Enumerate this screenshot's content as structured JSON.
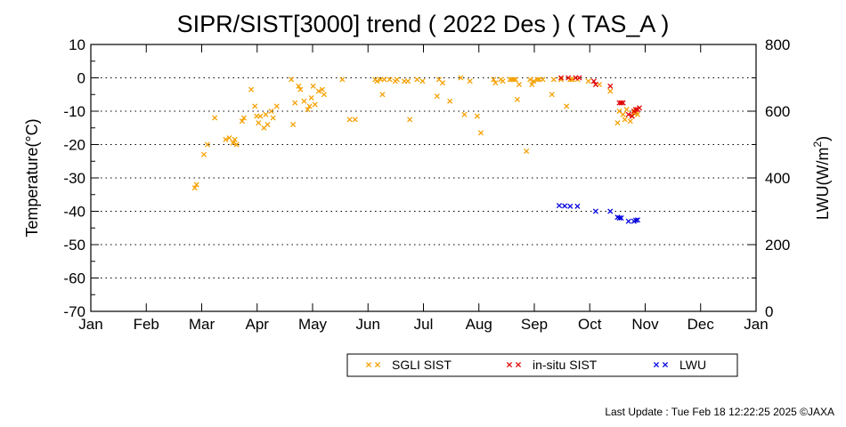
{
  "chart_data": {
    "type": "scatter",
    "title": "SIPR/SIST[3000] trend ( 2022 Des ) ( TAS_A )",
    "ylabel": "Temperature(°C)",
    "y2label_main": "LWU(W/m",
    "y2label_sup": "2",
    "y2label_end": ")",
    "xlabel": "",
    "ylim": [
      -70,
      10
    ],
    "y2lim": [
      0,
      800
    ],
    "yticks": [
      "10",
      "0",
      "-10",
      "-20",
      "-30",
      "-40",
      "-50",
      "-60",
      "-70"
    ],
    "y2ticks": [
      "800",
      "600",
      "400",
      "200",
      "0"
    ],
    "months": [
      "Jan",
      "Feb",
      "Mar",
      "Apr",
      "May",
      "Jun",
      "Jul",
      "Aug",
      "Sep",
      "Oct",
      "Nov",
      "Dec",
      "Jan"
    ],
    "grid": "dotted horizontal at major y ticks",
    "legend_placement": "bottom-right",
    "series": [
      {
        "name": "SGLI SIST",
        "color": "#f5a000",
        "axis": "left",
        "points": [
          [
            57,
            -33
          ],
          [
            58,
            -32
          ],
          [
            62,
            -23
          ],
          [
            64,
            -20
          ],
          [
            68,
            -12
          ],
          [
            74,
            -18.5
          ],
          [
            76,
            -18
          ],
          [
            78,
            -19.5
          ],
          [
            79,
            -18.5
          ],
          [
            80,
            -20
          ],
          [
            83,
            -13
          ],
          [
            84,
            -12
          ],
          [
            88,
            -3.5
          ],
          [
            90,
            -8.5
          ],
          [
            91,
            -11.5
          ],
          [
            92,
            -13.5
          ],
          [
            93,
            -11.5
          ],
          [
            95,
            -15
          ],
          [
            96,
            -11
          ],
          [
            97,
            -14
          ],
          [
            99,
            -10
          ],
          [
            100,
            -12
          ],
          [
            102,
            -8.5
          ],
          [
            110,
            -0.5
          ],
          [
            111,
            -14
          ],
          [
            112,
            -7.5
          ],
          [
            114,
            -2.5
          ],
          [
            115,
            -3.5
          ],
          [
            117,
            -7
          ],
          [
            119,
            -9.5
          ],
          [
            120,
            -8.5
          ],
          [
            121,
            -6
          ],
          [
            122,
            -2.5
          ],
          [
            123,
            -8
          ],
          [
            125,
            -4
          ],
          [
            127,
            -3.5
          ],
          [
            128,
            -5
          ],
          [
            138,
            -0.5
          ],
          [
            142,
            -12.5
          ],
          [
            145,
            -12.5
          ],
          [
            156,
            -0.5
          ],
          [
            157,
            -1
          ],
          [
            159,
            -0.5
          ],
          [
            160,
            -5
          ],
          [
            161,
            -0.5
          ],
          [
            164,
            -0.5
          ],
          [
            167,
            -1
          ],
          [
            168,
            -0.5
          ],
          [
            172,
            -1
          ],
          [
            174,
            -1
          ],
          [
            175,
            -12.5
          ],
          [
            179,
            -0.5
          ],
          [
            182,
            -1
          ],
          [
            190,
            -5.5
          ],
          [
            191,
            -0.5
          ],
          [
            193,
            -1.5
          ],
          [
            197,
            -7
          ],
          [
            203,
            0
          ],
          [
            205,
            -11
          ],
          [
            208,
            -1
          ],
          [
            212,
            -11.5
          ],
          [
            214,
            -16.5
          ],
          [
            221,
            -0.5
          ],
          [
            222,
            -1.5
          ],
          [
            225,
            -0.5
          ],
          [
            226,
            -1
          ],
          [
            230,
            -0.5
          ],
          [
            231,
            -0.5
          ],
          [
            232,
            -0.5
          ],
          [
            233,
            -0.5
          ],
          [
            234,
            -6.5
          ],
          [
            235,
            -2
          ],
          [
            239,
            -22
          ],
          [
            241,
            -0.5
          ],
          [
            242,
            -2
          ],
          [
            243,
            -1
          ],
          [
            245,
            -0.5
          ],
          [
            246,
            -0.5
          ],
          [
            248,
            -0.5
          ],
          [
            253,
            -5
          ],
          [
            254,
            -0.5
          ],
          [
            258,
            -0.5
          ],
          [
            261,
            -8.5
          ],
          [
            263,
            -0.5
          ],
          [
            264,
            -0.5
          ],
          [
            267,
            -0.5
          ],
          [
            273,
            -1
          ],
          [
            279,
            -2
          ],
          [
            285,
            -4
          ],
          [
            289,
            -13.5
          ],
          [
            290,
            -10
          ],
          [
            292,
            -11
          ],
          [
            293,
            -12.5
          ],
          [
            294,
            -9.5
          ],
          [
            296,
            -13
          ],
          [
            297,
            -11.5
          ],
          [
            298,
            -10.5
          ],
          [
            299,
            -10
          ],
          [
            300,
            -11
          ]
        ]
      },
      {
        "name": "in-situ SIST",
        "color": "#e00000",
        "axis": "left",
        "points": [
          [
            258,
            0
          ],
          [
            262,
            0
          ],
          [
            266,
            0
          ],
          [
            268,
            0
          ],
          [
            276,
            -1
          ],
          [
            277,
            -2
          ],
          [
            285,
            -2.5
          ],
          [
            290,
            -7.5
          ],
          [
            291,
            -7.5
          ],
          [
            292,
            -7.5
          ],
          [
            295,
            -11
          ],
          [
            297,
            -11.5
          ],
          [
            298,
            -10
          ],
          [
            299,
            -9.5
          ],
          [
            300,
            -9.5
          ],
          [
            301,
            -9
          ]
        ]
      },
      {
        "name": "LWU",
        "color": "#0000e0",
        "axis": "right",
        "points": [
          [
            257,
            317
          ],
          [
            260,
            316
          ],
          [
            263,
            315
          ],
          [
            267,
            315
          ],
          [
            277,
            300
          ],
          [
            285,
            300
          ],
          [
            289,
            282
          ],
          [
            290,
            280
          ],
          [
            291,
            280
          ],
          [
            295,
            270
          ],
          [
            298,
            270
          ],
          [
            299,
            273
          ],
          [
            300,
            274
          ]
        ]
      }
    ]
  },
  "footer": {
    "last_update": "Last Update : Tue Feb 18 12:22:25 2025  ©JAXA"
  }
}
